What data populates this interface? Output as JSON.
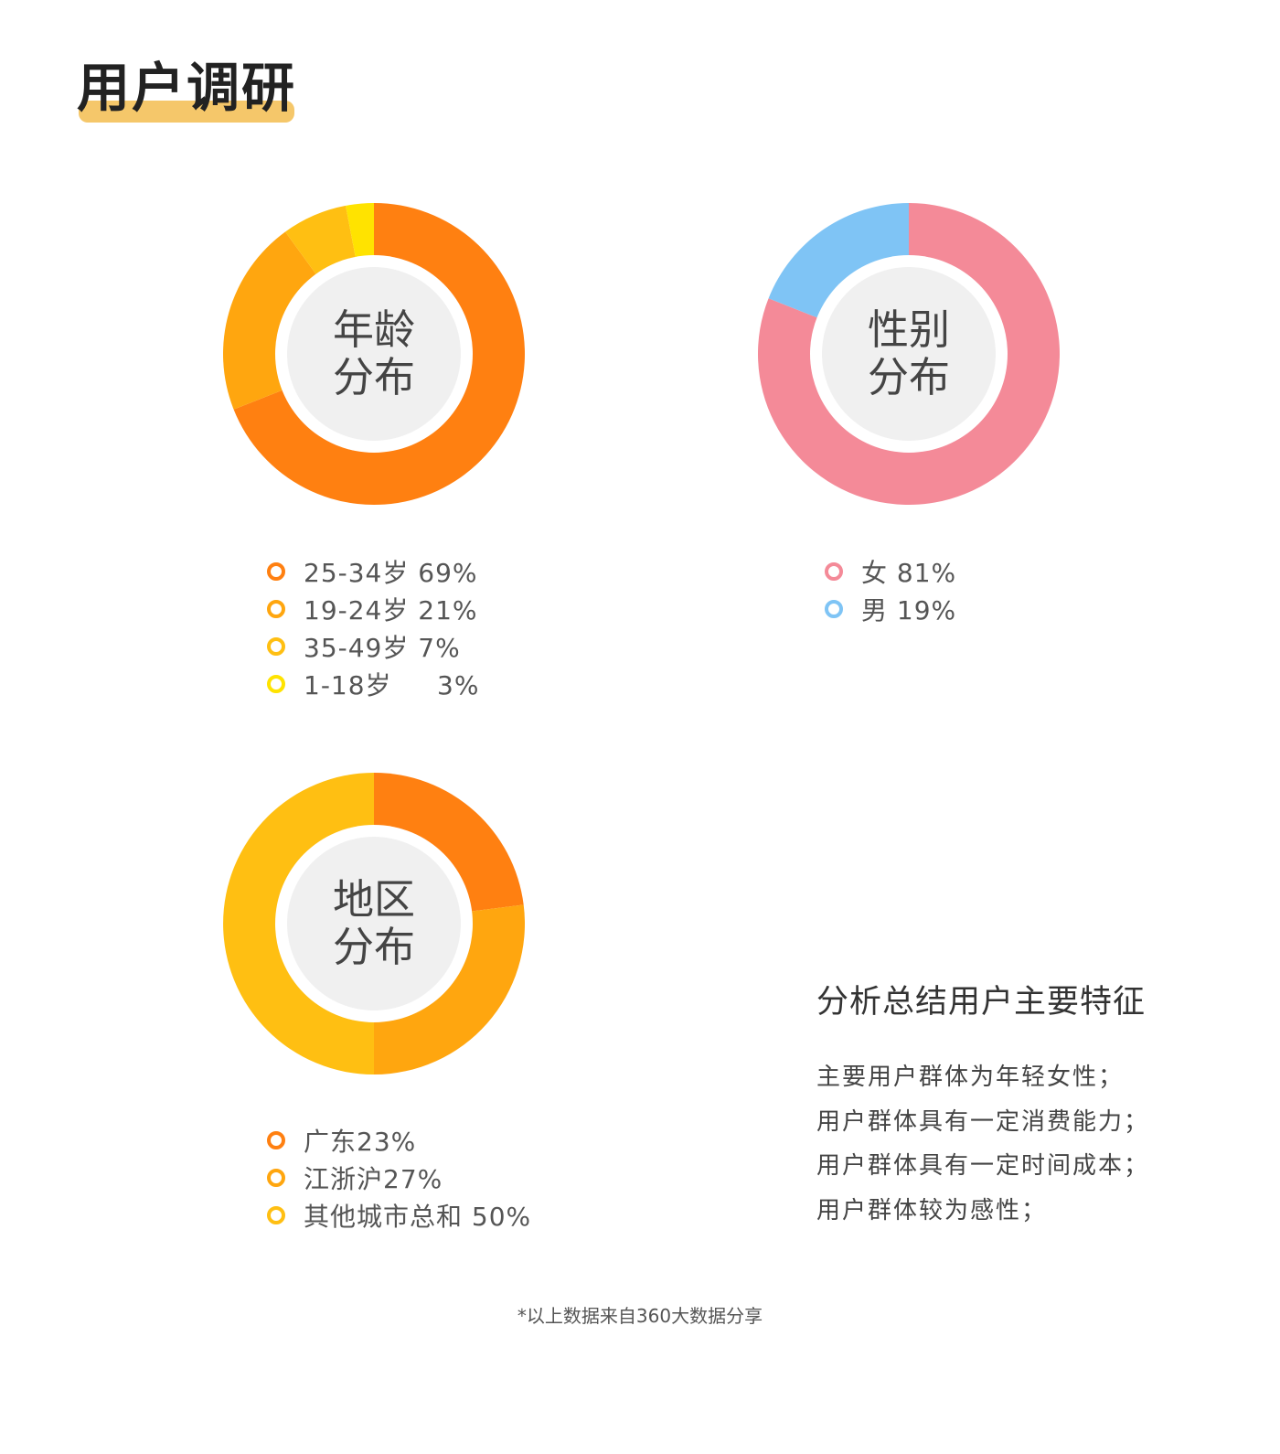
{
  "page": {
    "title": "用户调研",
    "footnote": "*以上数据来自360大数据分享"
  },
  "colors": {
    "accent": "#f5c76a",
    "orange": "#ff8011",
    "amber": "#ffa60f",
    "gold": "#ffbf12",
    "yellow": "#ffe300",
    "pink": "#f48a98",
    "blue": "#7fc4f5",
    "center_fill": "#f0f0f0"
  },
  "chart_data": [
    {
      "type": "pie",
      "title": "年龄分布",
      "title_lines": [
        "年龄",
        "分布"
      ],
      "slices": [
        {
          "label": "25-34岁",
          "value": 69,
          "display": "25-34岁 69%",
          "color": "#ff8011"
        },
        {
          "label": "19-24岁",
          "value": 21,
          "display": "19-24岁 21%",
          "color": "#ffa60f"
        },
        {
          "label": "35-49岁",
          "value": 7,
          "display": "35-49岁 7%",
          "color": "#ffbf12"
        },
        {
          "label": "1-18岁",
          "value": 3,
          "display": "1-18岁     3%",
          "color": "#ffe300"
        }
      ]
    },
    {
      "type": "pie",
      "title": "性别分布",
      "title_lines": [
        "性别",
        "分布"
      ],
      "slices": [
        {
          "label": "女",
          "value": 81,
          "display": "女 81%",
          "color": "#f48a98"
        },
        {
          "label": "男",
          "value": 19,
          "display": "男 19%",
          "color": "#7fc4f5"
        }
      ]
    },
    {
      "type": "pie",
      "title": "地区分布",
      "title_lines": [
        "地区",
        "分布"
      ],
      "slices": [
        {
          "label": "广东",
          "value": 23,
          "display": "广东23%",
          "color": "#ff8011"
        },
        {
          "label": "江浙沪",
          "value": 27,
          "display": "江浙沪27%",
          "color": "#ffa60f"
        },
        {
          "label": "其他城市总和",
          "value": 50,
          "display": "其他城市总和 50%",
          "color": "#ffbf12"
        }
      ]
    }
  ],
  "summary": {
    "title": "分析总结用户主要特征",
    "lines": [
      "主要用户群体为年轻女性；",
      "用户群体具有一定消费能力；",
      "用户群体具有一定时间成本；",
      "用户群体较为感性；"
    ]
  }
}
